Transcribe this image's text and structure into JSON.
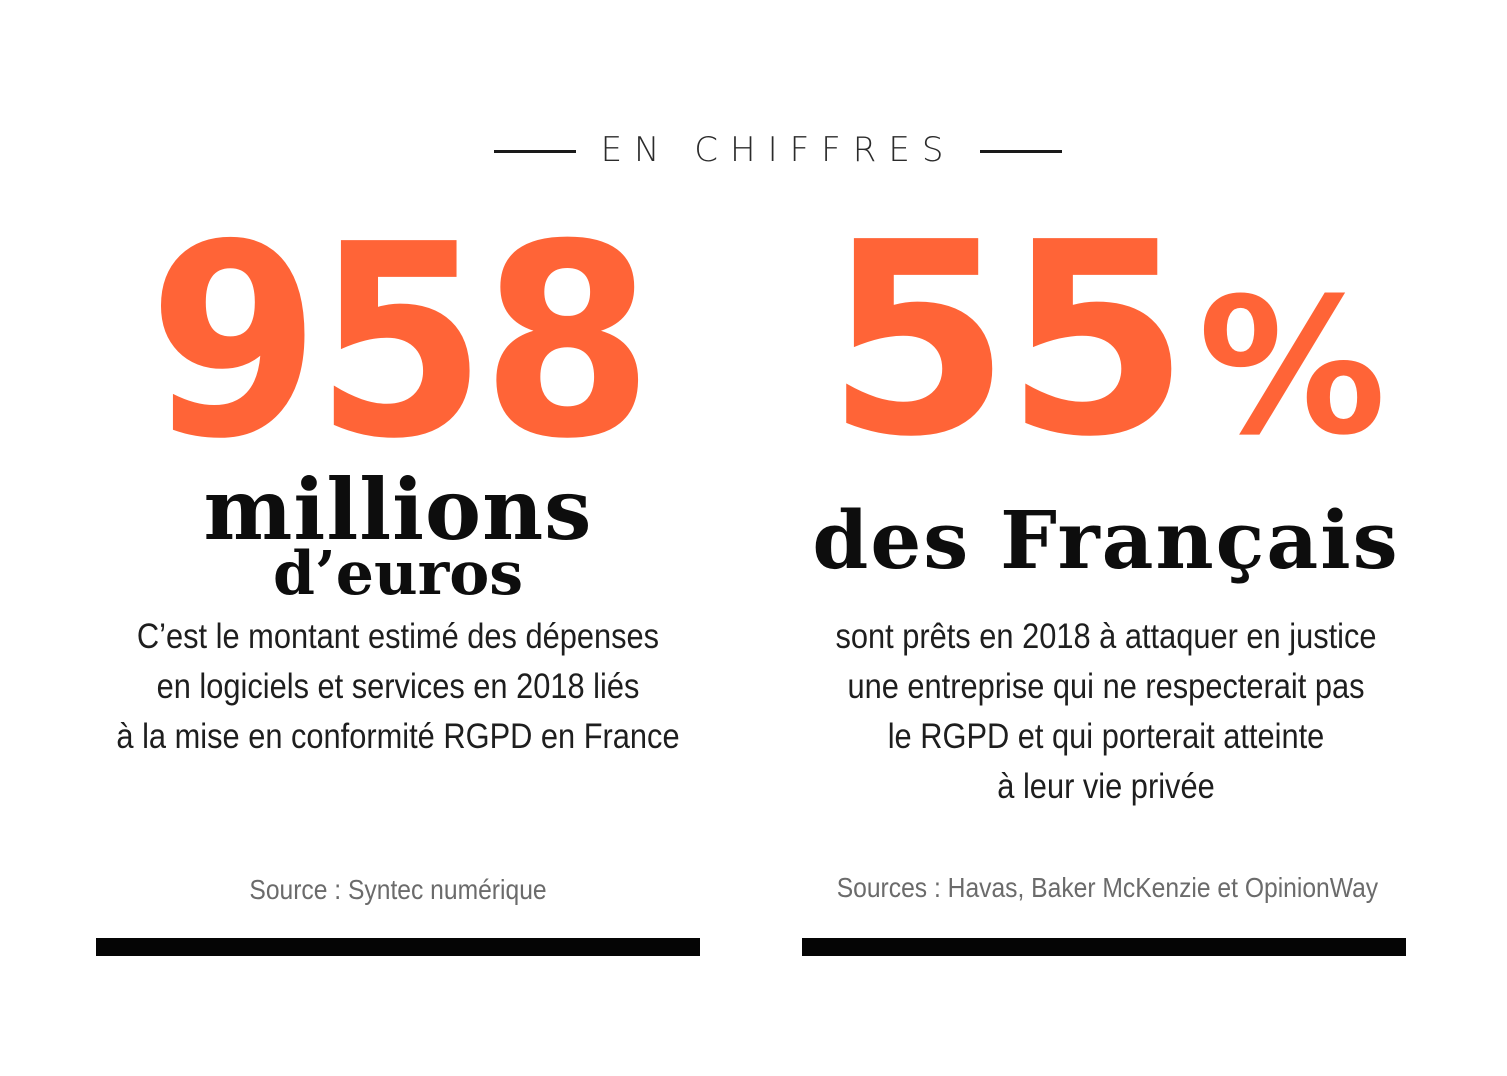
{
  "header": {
    "title": "EN CHIFFRES"
  },
  "left": {
    "number": "958",
    "unit_line1": "millions",
    "unit_line2": "d’euros",
    "description": [
      "C’est le montant estimé des dépenses",
      "en logiciels et services en 2018 liés",
      "à la mise en conformité RGPD en France"
    ],
    "source": "Source : Syntec numérique"
  },
  "right": {
    "number": "55",
    "percent_sign": "%",
    "unit_line1": "des Français",
    "description": [
      "sont prêts en 2018 à attaquer en justice",
      "une entreprise qui ne respecterait pas",
      "le RGPD et qui porterait atteinte",
      "à leur vie privée"
    ],
    "source": "Sources : Havas, Baker McKenzie et OpinionWay"
  },
  "colors": {
    "accent": "#ff6437",
    "text": "#111111",
    "source": "#6b6b6b",
    "bar": "#050505"
  }
}
